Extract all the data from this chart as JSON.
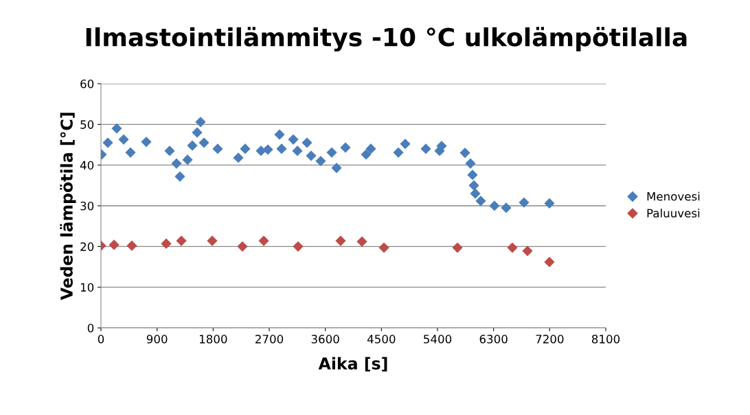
{
  "chart_data": {
    "type": "scatter",
    "title": "Ilmastointilämmitys -10 °C ulkolämpötilalla",
    "xlabel": "Aika [s]",
    "ylabel": "Veden lämpötila [°C]",
    "xlim": [
      0,
      8100
    ],
    "xticks": [
      0,
      900,
      1800,
      2700,
      3600,
      4500,
      5400,
      6300,
      7200,
      8100
    ],
    "ylim": [
      0,
      60
    ],
    "yticks": [
      0,
      10,
      20,
      30,
      40,
      50,
      60
    ],
    "grid": "y",
    "legend": "right",
    "marker": "diamond",
    "series": [
      {
        "name": "Menovesi",
        "color": "#4a7ebb",
        "x": [
          11,
          110,
          253,
          364,
          474,
          727,
          1102,
          1212,
          1267,
          1389,
          1466,
          1543,
          1598,
          1653,
          1873,
          2204,
          2314,
          2568,
          2678,
          2865,
          2898,
          3086,
          3152,
          3306,
          3372,
          3526,
          3703,
          3780,
          3923,
          4254,
          4331,
          4772,
          4882,
          5213,
          5433,
          5466,
          5841,
          5929,
          5962,
          5984,
          6006,
          6094,
          6314,
          6502,
          6788,
          7196
        ],
        "values": [
          42.6,
          45.5,
          49,
          46.3,
          43.1,
          45.7,
          43.5,
          40.4,
          37.2,
          41.3,
          44.8,
          48,
          50.6,
          45.5,
          44,
          41.8,
          44,
          43.5,
          43.8,
          47.5,
          44,
          46.3,
          43.5,
          45.5,
          42.3,
          41,
          43.1,
          39.3,
          44.3,
          42.6,
          44,
          43.1,
          45.2,
          44,
          43.5,
          44.7,
          43,
          40.4,
          37.6,
          35,
          33,
          31.2,
          30,
          29.5,
          30.8,
          30.6
        ]
      },
      {
        "name": "Paluuvesi",
        "color": "#be4b48",
        "x": [
          0,
          210,
          496,
          1047,
          1290,
          1785,
          2270,
          2612,
          3163,
          3846,
          4188,
          4541,
          5720,
          6601,
          6843,
          7196
        ],
        "values": [
          20.2,
          20.4,
          20.2,
          20.7,
          21.4,
          21.4,
          20,
          21.4,
          20,
          21.4,
          21.2,
          19.7,
          19.7,
          19.7,
          18.9,
          16.2
        ]
      }
    ]
  }
}
